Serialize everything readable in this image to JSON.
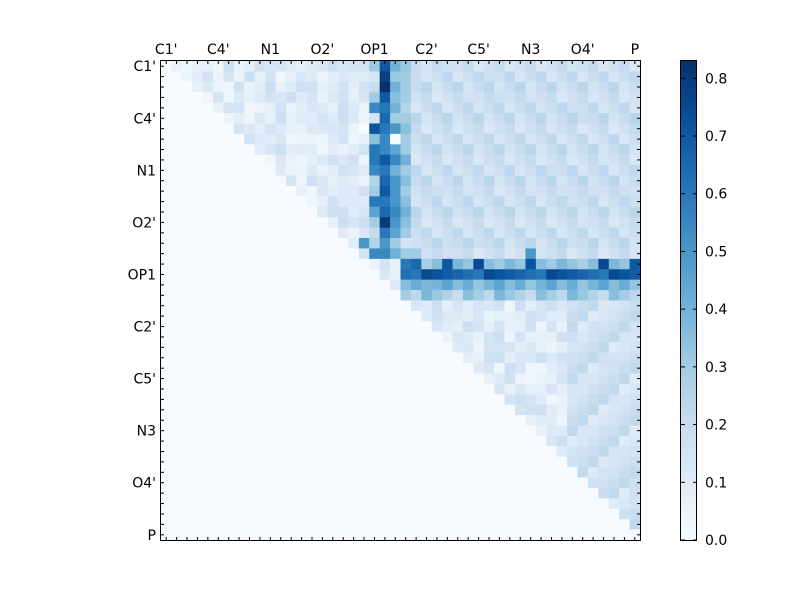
{
  "chart_data": {
    "type": "heatmap",
    "title": "",
    "xlabel": "",
    "ylabel": "",
    "n": 46,
    "x_tick_labels": [
      "C1'",
      "C4'",
      "N1",
      "O2'",
      "OP1",
      "C2'",
      "C5'",
      "N3",
      "O4'",
      "P"
    ],
    "y_tick_labels": [
      "C1'",
      "C4'",
      "N1",
      "O2'",
      "OP1",
      "C2'",
      "C5'",
      "N3",
      "O4'",
      "P"
    ],
    "tick_positions": [
      0,
      5,
      10,
      15,
      20,
      25,
      30,
      35,
      40,
      45
    ],
    "colorbar": {
      "range": [
        0.0,
        0.83
      ],
      "ticks": [
        "0.0",
        "0.1",
        "0.2",
        "0.3",
        "0.4",
        "0.5",
        "0.6",
        "0.7",
        "0.8"
      ],
      "colormap": "Blues"
    },
    "grid": false,
    "note_upper_triangle_only": true,
    "rows": [
      {
        "row": 0,
        "values": [
          [
            20,
            0.32
          ],
          [
            21,
            0.7
          ],
          [
            22,
            0.4
          ],
          [
            23,
            0.32
          ],
          [
            24,
            0.2
          ],
          [
            25,
            0.15
          ]
        ]
      },
      {
        "row": 1,
        "values": [
          [
            20,
            0.15
          ],
          [
            21,
            0.78
          ],
          [
            22,
            0.32
          ],
          [
            23,
            0.3
          ],
          [
            24,
            0.2
          ]
        ]
      },
      {
        "row": 2,
        "values": [
          [
            20,
            0.2
          ],
          [
            21,
            0.83
          ],
          [
            22,
            0.4
          ],
          [
            23,
            0.3
          ]
        ]
      },
      {
        "row": 3,
        "values": [
          [
            20,
            0.3
          ],
          [
            21,
            0.7
          ],
          [
            22,
            0.35
          ],
          [
            23,
            0.3
          ]
        ]
      },
      {
        "row": 4,
        "values": [
          [
            20,
            0.55
          ],
          [
            21,
            0.6
          ],
          [
            22,
            0.4
          ],
          [
            23,
            0.25
          ]
        ]
      },
      {
        "row": 5,
        "values": [
          [
            20,
            0.15
          ],
          [
            21,
            0.65
          ],
          [
            22,
            0.3
          ],
          [
            23,
            0.3
          ]
        ]
      },
      {
        "row": 6,
        "values": [
          [
            19,
            0.0
          ],
          [
            20,
            0.72
          ],
          [
            21,
            0.6
          ],
          [
            22,
            0.5
          ],
          [
            23,
            0.35
          ]
        ]
      },
      {
        "row": 7,
        "values": [
          [
            20,
            0.35
          ],
          [
            21,
            0.55
          ],
          [
            22,
            0.0
          ],
          [
            23,
            0.3
          ]
        ]
      },
      {
        "row": 8,
        "values": [
          [
            20,
            0.6
          ],
          [
            21,
            0.55
          ],
          [
            22,
            0.45
          ],
          [
            23,
            0.3
          ]
        ]
      },
      {
        "row": 9,
        "values": [
          [
            20,
            0.6
          ],
          [
            21,
            0.7
          ],
          [
            22,
            0.55
          ],
          [
            23,
            0.4
          ]
        ]
      },
      {
        "row": 10,
        "values": [
          [
            20,
            0.55
          ],
          [
            21,
            0.6
          ],
          [
            22,
            0.4
          ],
          [
            23,
            0.3
          ]
        ]
      },
      {
        "row": 11,
        "values": [
          [
            20,
            0.25
          ],
          [
            21,
            0.65
          ],
          [
            22,
            0.5
          ],
          [
            23,
            0.35
          ]
        ]
      },
      {
        "row": 12,
        "values": [
          [
            20,
            0.3
          ],
          [
            21,
            0.7
          ],
          [
            22,
            0.5
          ],
          [
            23,
            0.3
          ]
        ]
      },
      {
        "row": 13,
        "values": [
          [
            20,
            0.6
          ],
          [
            21,
            0.6
          ],
          [
            22,
            0.5
          ],
          [
            23,
            0.35
          ]
        ]
      },
      {
        "row": 14,
        "values": [
          [
            20,
            0.45
          ],
          [
            21,
            0.65
          ],
          [
            22,
            0.55
          ],
          [
            23,
            0.4
          ]
        ]
      },
      {
        "row": 15,
        "values": [
          [
            20,
            0.3
          ],
          [
            21,
            0.8
          ],
          [
            22,
            0.5
          ],
          [
            23,
            0.35
          ]
        ]
      },
      {
        "row": 16,
        "values": [
          [
            20,
            0.2
          ],
          [
            21,
            0.6
          ],
          [
            22,
            0.45
          ],
          [
            23,
            0.3
          ]
        ]
      },
      {
        "row": 17,
        "values": [
          [
            19,
            0.5
          ],
          [
            20,
            0.25
          ],
          [
            21,
            0.5
          ],
          [
            22,
            0.3
          ]
        ]
      },
      {
        "row": 18,
        "values": [
          [
            20,
            0.55
          ],
          [
            21,
            0.55
          ],
          [
            22,
            0.4
          ],
          [
            23,
            0.3
          ],
          [
            24,
            0.3
          ],
          [
            35,
            0.5
          ]
        ]
      },
      {
        "row": 19,
        "values": [
          [
            23,
            0.6
          ],
          [
            24,
            0.65
          ],
          [
            27,
            0.7
          ],
          [
            30,
            0.75
          ],
          [
            35,
            0.72
          ],
          [
            42,
            0.75
          ],
          [
            45,
            0.7
          ]
        ]
      },
      {
        "row": 20,
        "values": [
          [
            23,
            0.4
          ],
          [
            26,
            0.45
          ],
          [
            30,
            0.5
          ],
          [
            35,
            0.48
          ],
          [
            42,
            0.55
          ],
          [
            45,
            0.42
          ]
        ]
      }
    ]
  }
}
